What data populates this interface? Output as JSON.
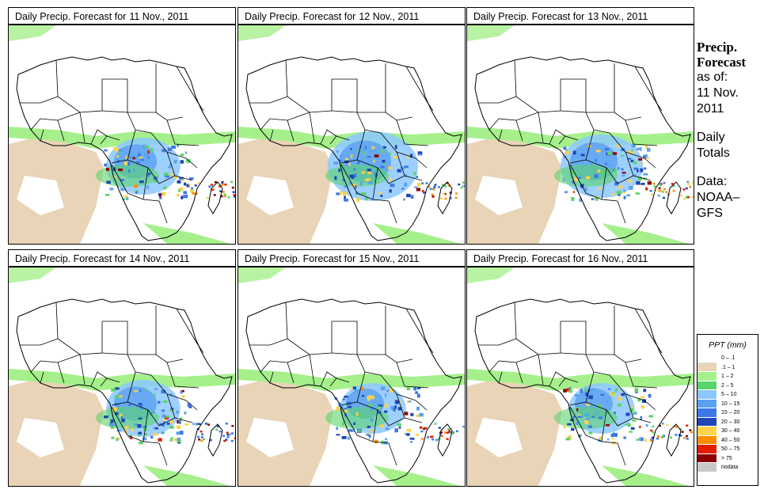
{
  "panels": [
    {
      "prefix": "Daily Precip. Forecast for",
      "date": "11 Nov., 2011"
    },
    {
      "prefix": "Daily Precip. Forecast for",
      "date": "12 Nov., 2011"
    },
    {
      "prefix": "Daily Precip. Forecast for",
      "date": "13 Nov., 2011"
    },
    {
      "prefix": "Daily Precip. Forecast for",
      "date": "14 Nov., 2011"
    },
    {
      "prefix": "Daily Precip. Forecast for",
      "date": "15 Nov., 2011"
    },
    {
      "prefix": "Daily Precip. Forecast for",
      "date": "16 Nov., 2011"
    }
  ],
  "side": {
    "title_line1": "Precip.",
    "title_line2": "Forecast",
    "asof_label": "as of:",
    "asof_day": "11 Nov.",
    "asof_year": "2011",
    "totals_line1": "Daily",
    "totals_line2": "Totals",
    "data_line1": "Data:",
    "data_line2": "NOAA–",
    "data_line3": "GFS"
  },
  "legend": {
    "title": "PPT (mm)",
    "items": [
      {
        "label": "0 – .1",
        "color": "#ffffff"
      },
      {
        "label": ".1 – 1",
        "color": "#e9d4b8"
      },
      {
        "label": "1 – 2",
        "color": "#a6f08c"
      },
      {
        "label": "2 – 5",
        "color": "#5ad36a"
      },
      {
        "label": "5 – 10",
        "color": "#8cc8ff"
      },
      {
        "label": "10 – 15",
        "color": "#5aa0f0"
      },
      {
        "label": "15 – 20",
        "color": "#3c78e6"
      },
      {
        "label": "20 – 30",
        "color": "#1e46b4"
      },
      {
        "label": "30 – 40",
        "color": "#ffd24a"
      },
      {
        "label": "40 – 50",
        "color": "#ff8c00"
      },
      {
        "label": "50 – 75",
        "color": "#e11e00"
      },
      {
        "label": "> 75",
        "color": "#8c0000"
      },
      {
        "label": "nodata",
        "color": "#c8c8c8"
      }
    ]
  }
}
